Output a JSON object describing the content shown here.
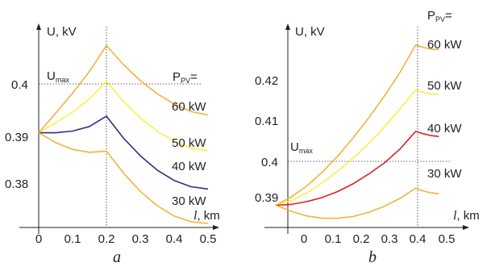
{
  "chart_data": [
    {
      "type": "line",
      "panel_label": "a",
      "y_axis_label": "U, kV",
      "x_axis_label_italic": "l",
      "x_axis_label_unit": ", km",
      "xlim": [
        0,
        0.5
      ],
      "ylim": [
        0.373,
        0.408
      ],
      "x_ticks": [
        "0",
        "0.1",
        "0.2",
        "0.3",
        "0.4",
        "0.5"
      ],
      "y_ticks": [
        "0.38",
        "0.39",
        "0.4"
      ],
      "umax": {
        "value": 0.4,
        "label": "U",
        "label_sub": "max"
      },
      "vline_x": 0.2,
      "pv_title": "P",
      "pv_title_sub": "PV",
      "pv_title_suffix": "=",
      "x": [
        0,
        0.05,
        0.1,
        0.15,
        0.2,
        0.25,
        0.3,
        0.35,
        0.4,
        0.45,
        0.5
      ],
      "series": [
        {
          "name": "60 kW",
          "color": "#f2b43a",
          "values": [
            0.3895,
            0.3929,
            0.3964,
            0.4002,
            0.4047,
            0.4014,
            0.3986,
            0.3963,
            0.3945,
            0.3932,
            0.3926
          ]
        },
        {
          "name": "50 kW",
          "color": "#f9f048",
          "values": [
            0.3895,
            0.3912,
            0.3931,
            0.3954,
            0.3985,
            0.395,
            0.3921,
            0.3898,
            0.388,
            0.3868,
            0.3864
          ]
        },
        {
          "name": "40 kW",
          "color": "#2e2f85",
          "values": [
            0.3895,
            0.3895,
            0.3898,
            0.3906,
            0.3924,
            0.3886,
            0.3855,
            0.383,
            0.3812,
            0.3801,
            0.3797
          ]
        },
        {
          "name": "30 kW",
          "color": "#f2b43a",
          "values": [
            0.3895,
            0.3878,
            0.3866,
            0.3861,
            0.3863,
            0.3825,
            0.3793,
            0.3768,
            0.375,
            0.374,
            0.3737
          ]
        }
      ]
    },
    {
      "type": "line",
      "panel_label": "b",
      "y_axis_label": "U, kV",
      "x_axis_label_italic": "l",
      "x_axis_label_unit": ", km",
      "xlim": [
        -0.05,
        0.5
      ],
      "ylim": [
        0.386,
        0.4295
      ],
      "x_ticks": [
        "0",
        "0.1",
        "0.2",
        "0.3",
        "0.4",
        "0.5"
      ],
      "y_ticks": [
        "0.39",
        "0.4",
        "0.41",
        "0.42"
      ],
      "umax": {
        "value": 0.4,
        "label": "U",
        "label_sub": "max"
      },
      "vline_x": 0.4,
      "pv_title": "P",
      "pv_title_sub": "PV",
      "pv_title_suffix": "=",
      "x": [
        -0.05,
        0.0,
        0.05,
        0.1,
        0.15,
        0.2,
        0.25,
        0.3,
        0.35,
        0.4,
        0.425,
        0.45,
        0.475
      ],
      "series": [
        {
          "name": "60 kW",
          "color": "#f2b43a",
          "values": [
            0.3908,
            0.3926,
            0.395,
            0.398,
            0.4015,
            0.4055,
            0.4098,
            0.4145,
            0.4196,
            0.4255,
            0.425,
            0.4246,
            0.4245
          ]
        },
        {
          "name": "50 kW",
          "color": "#f9f048",
          "values": [
            0.3908,
            0.3918,
            0.3935,
            0.3957,
            0.3982,
            0.4011,
            0.4042,
            0.4078,
            0.4117,
            0.4158,
            0.4153,
            0.4149,
            0.4148
          ]
        },
        {
          "name": "40 kW",
          "color": "#e0202a",
          "values": [
            0.3908,
            0.391,
            0.3916,
            0.3925,
            0.3938,
            0.3955,
            0.3976,
            0.4,
            0.403,
            0.4068,
            0.4063,
            0.4059,
            0.4057
          ]
        },
        {
          "name": "30 kW",
          "color": "#f2b43a",
          "values": [
            0.3908,
            0.3895,
            0.3885,
            0.388,
            0.388,
            0.3884,
            0.3893,
            0.3906,
            0.3923,
            0.3945,
            0.3939,
            0.3935,
            0.3933
          ]
        }
      ]
    }
  ]
}
